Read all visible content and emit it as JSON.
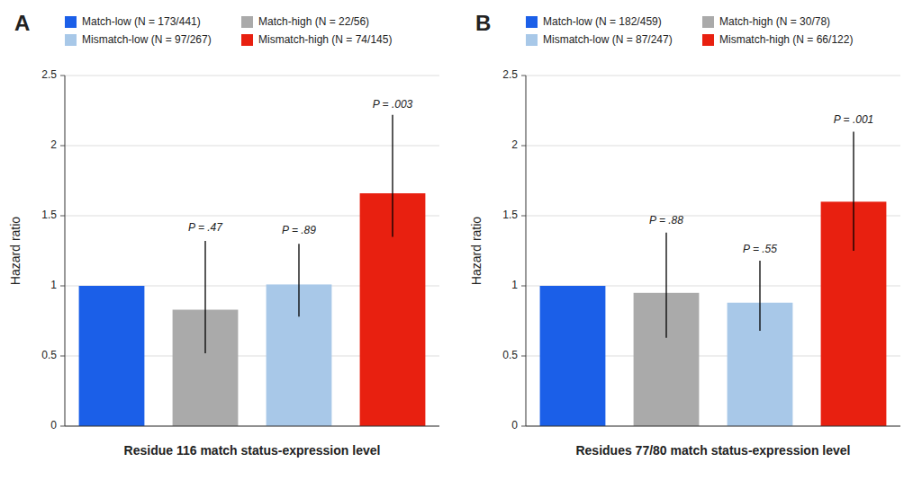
{
  "chart_data": [
    {
      "type": "bar",
      "title": "A",
      "xlabel": "Residue 116 match status-expression level",
      "ylabel": "Hazard ratio",
      "categories": [
        "Match-low (N = 173/441)",
        "Match-high (N = 22/56)",
        "Mismatch-low (N = 97/267)",
        "Mismatch-high (N = 74/145)"
      ],
      "values": [
        1.0,
        0.83,
        1.01,
        1.66
      ],
      "err_low": [
        0.0,
        0.31,
        0.23,
        0.31
      ],
      "err_high": [
        0.0,
        0.49,
        0.29,
        0.56
      ],
      "colors": [
        "#1b5fe8",
        "#aaaaaa",
        "#a8c8e8",
        "#e82010"
      ],
      "annotations": [
        {
          "text": "P = .47",
          "category": "Match-high (N = 22/56)",
          "y": 1.37
        },
        {
          "text": "P = .89",
          "category": "Mismatch-low (N = 97/267)",
          "y": 1.35
        },
        {
          "text": "P = .003",
          "category": "Mismatch-high (N = 74/145)",
          "y": 2.25
        }
      ],
      "ylim": [
        0,
        2.5
      ],
      "yticks": [
        0,
        0.5,
        1.0,
        1.5,
        2.0,
        2.5
      ],
      "grid": true,
      "legend": "upper left",
      "tick_labels": "y"
    },
    {
      "type": "bar",
      "title": "B",
      "xlabel": "Residues 77/80 match status-expression level",
      "ylabel": "Hazard ratio",
      "categories": [
        "Match-low (N = 182/459)",
        "Match-high (N = 30/78)",
        "Mismatch-low (N = 87/247)",
        "Mismatch-high (N = 66/122)"
      ],
      "values": [
        1.0,
        0.95,
        0.88,
        1.6
      ],
      "err_low": [
        0.0,
        0.32,
        0.2,
        0.35
      ],
      "err_high": [
        0.0,
        0.43,
        0.3,
        0.5
      ],
      "colors": [
        "#1b5fe8",
        "#aaaaaa",
        "#a8c8e8",
        "#e82010"
      ],
      "annotations": [
        {
          "text": "P = .88",
          "category": "Match-high (N = 30/78)",
          "y": 1.42
        },
        {
          "text": "P = .55",
          "category": "Mismatch-low (N = 87/247)",
          "y": 1.22
        },
        {
          "text": "P = .001",
          "category": "Mismatch-high (N = 66/122)",
          "y": 2.14
        }
      ],
      "ylim": [
        0,
        2.5
      ],
      "yticks": [
        0,
        0.5,
        1.0,
        1.5,
        2.0,
        2.5
      ],
      "grid": true,
      "legend": "upper left",
      "tick_labels": "y"
    }
  ]
}
